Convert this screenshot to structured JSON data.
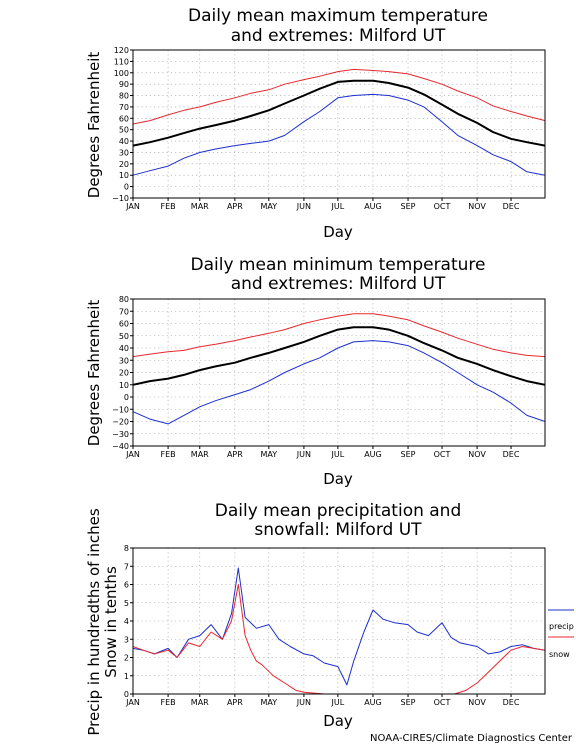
{
  "chart_data": [
    {
      "type": "line",
      "title": [
        "Daily mean maximum temperature",
        "and extremes: Milford UT"
      ],
      "xlabel": "Day",
      "ylabel": "Degrees Fahrenheit",
      "ylim": [
        -10,
        120
      ],
      "yticks": [
        -10,
        0,
        10,
        20,
        30,
        40,
        50,
        60,
        70,
        80,
        90,
        100,
        110,
        120
      ],
      "xtick_labels": [
        "JAN",
        "FEB",
        "MAR",
        "APR",
        "MAY",
        "JUN",
        "JUL",
        "AUG",
        "SEP",
        "OCT",
        "NOV",
        "DEC"
      ],
      "xlim": [
        1,
        365
      ],
      "grid": true,
      "series": [
        {
          "role": "extreme-high",
          "color": "#e8282e",
          "x": [
            1,
            16,
            32,
            46,
            60,
            74,
            91,
            105,
            121,
            135,
            152,
            166,
            182,
            196,
            213,
            227,
            244,
            258,
            274,
            288,
            305,
            319,
            335,
            349,
            365
          ],
          "values": [
            55,
            58,
            63,
            67,
            70,
            74,
            78,
            82,
            85,
            90,
            94,
            97,
            101,
            103,
            102,
            101,
            99,
            95,
            90,
            84,
            78,
            71,
            66,
            62,
            58
          ]
        },
        {
          "role": "mean",
          "color": "#000000",
          "x": [
            1,
            16,
            32,
            46,
            60,
            74,
            91,
            105,
            121,
            135,
            152,
            166,
            182,
            196,
            213,
            227,
            244,
            258,
            274,
            288,
            305,
            319,
            335,
            349,
            365
          ],
          "values": [
            36,
            39,
            43,
            47,
            51,
            54,
            58,
            62,
            67,
            73,
            80,
            86,
            92,
            93,
            93,
            91,
            87,
            81,
            72,
            64,
            56,
            48,
            42,
            39,
            36
          ]
        },
        {
          "role": "extreme-low",
          "color": "#1c2fd0",
          "x": [
            1,
            16,
            32,
            46,
            60,
            74,
            91,
            105,
            121,
            135,
            152,
            166,
            182,
            196,
            213,
            227,
            244,
            258,
            274,
            288,
            305,
            319,
            335,
            349,
            365
          ],
          "values": [
            10,
            14,
            18,
            25,
            30,
            33,
            36,
            38,
            40,
            45,
            57,
            66,
            78,
            80,
            81,
            80,
            76,
            70,
            57,
            45,
            36,
            28,
            22,
            13,
            10
          ]
        }
      ]
    },
    {
      "type": "line",
      "title": [
        "Daily mean minimum temperature",
        "and extremes: Milford UT"
      ],
      "xlabel": "Day",
      "ylabel": "Degrees Fahrenheit",
      "ylim": [
        -40,
        80
      ],
      "yticks": [
        -40,
        -30,
        -20,
        -10,
        0,
        10,
        20,
        30,
        40,
        50,
        60,
        70,
        80
      ],
      "xtick_labels": [
        "JAN",
        "FEB",
        "MAR",
        "APR",
        "MAY",
        "JUN",
        "JUL",
        "AUG",
        "SEP",
        "OCT",
        "NOV",
        "DEC"
      ],
      "xlim": [
        1,
        365
      ],
      "grid": true,
      "series": [
        {
          "role": "extreme-high",
          "color": "#e8282e",
          "x": [
            1,
            16,
            32,
            46,
            60,
            74,
            91,
            105,
            121,
            135,
            152,
            166,
            182,
            196,
            213,
            227,
            244,
            258,
            274,
            288,
            305,
            319,
            335,
            349,
            365
          ],
          "values": [
            33,
            35,
            37,
            38,
            41,
            43,
            46,
            49,
            52,
            55,
            60,
            63,
            66,
            68,
            68,
            66,
            63,
            58,
            53,
            48,
            43,
            39,
            36,
            34,
            33
          ]
        },
        {
          "role": "mean",
          "color": "#000000",
          "x": [
            1,
            16,
            32,
            46,
            60,
            74,
            91,
            105,
            121,
            135,
            152,
            166,
            182,
            196,
            213,
            227,
            244,
            258,
            274,
            288,
            305,
            319,
            335,
            349,
            365
          ],
          "values": [
            10,
            13,
            15,
            18,
            22,
            25,
            28,
            32,
            36,
            40,
            45,
            50,
            55,
            57,
            57,
            55,
            50,
            44,
            38,
            32,
            27,
            22,
            17,
            13,
            10
          ]
        },
        {
          "role": "extreme-low",
          "color": "#1c2fd0",
          "x": [
            1,
            16,
            32,
            46,
            60,
            74,
            91,
            105,
            121,
            135,
            152,
            166,
            182,
            196,
            213,
            227,
            244,
            258,
            274,
            288,
            305,
            319,
            335,
            349,
            365
          ],
          "values": [
            -12,
            -18,
            -22,
            -15,
            -8,
            -3,
            2,
            6,
            13,
            20,
            27,
            32,
            40,
            45,
            46,
            45,
            42,
            36,
            28,
            20,
            10,
            4,
            -5,
            -15,
            -20
          ]
        }
      ]
    },
    {
      "type": "line",
      "title": [
        "Daily mean precipitation and",
        "snowfall: Milford UT"
      ],
      "xlabel": "Day",
      "ylabel": [
        "Precip in hundredths of inches",
        "Snow in tenths"
      ],
      "ylim": [
        0,
        8
      ],
      "yticks": [
        0,
        1,
        2,
        3,
        4,
        5,
        6,
        7,
        8
      ],
      "xtick_labels": [
        "JAN",
        "FEB",
        "MAR",
        "APR",
        "MAY",
        "JUN",
        "JUL",
        "AUG",
        "SEP",
        "OCT",
        "NOV",
        "DEC"
      ],
      "xlim": [
        1,
        365
      ],
      "grid": true,
      "legend_position": "right",
      "series": [
        {
          "name": "precip",
          "color": "#1c2fd0",
          "x": [
            1,
            10,
            20,
            32,
            40,
            50,
            60,
            70,
            80,
            88,
            94,
            100,
            110,
            121,
            130,
            140,
            152,
            160,
            170,
            182,
            190,
            196,
            205,
            213,
            222,
            232,
            244,
            252,
            262,
            274,
            282,
            290,
            305,
            315,
            325,
            335,
            345,
            355,
            365
          ],
          "values": [
            2.5,
            2.4,
            2.2,
            2.5,
            2.0,
            3.0,
            3.2,
            3.8,
            3.0,
            4.4,
            6.9,
            4.2,
            3.6,
            3.8,
            3.0,
            2.6,
            2.2,
            2.1,
            1.7,
            1.5,
            0.5,
            1.8,
            3.4,
            4.6,
            4.1,
            3.9,
            3.8,
            3.4,
            3.2,
            3.9,
            3.1,
            2.8,
            2.6,
            2.2,
            2.3,
            2.6,
            2.7,
            2.5,
            2.4
          ]
        },
        {
          "name": "snow",
          "color": "#e8282e",
          "x": [
            1,
            10,
            20,
            32,
            40,
            50,
            60,
            70,
            80,
            88,
            94,
            100,
            105,
            110,
            115,
            125,
            135,
            145,
            152,
            170,
            200,
            230,
            260,
            285,
            295,
            305,
            315,
            325,
            335,
            345,
            355,
            365
          ],
          "values": [
            2.6,
            2.4,
            2.2,
            2.4,
            2.0,
            2.8,
            2.6,
            3.4,
            3.0,
            4.0,
            6.0,
            3.2,
            2.4,
            1.8,
            1.6,
            1.0,
            0.6,
            0.2,
            0.1,
            0.0,
            0.0,
            0.0,
            0.0,
            0.0,
            0.2,
            0.6,
            1.2,
            1.8,
            2.4,
            2.6,
            2.5,
            2.4
          ]
        }
      ]
    }
  ],
  "credit": "NOAA-CIRES/Climate Diagnostics Center"
}
